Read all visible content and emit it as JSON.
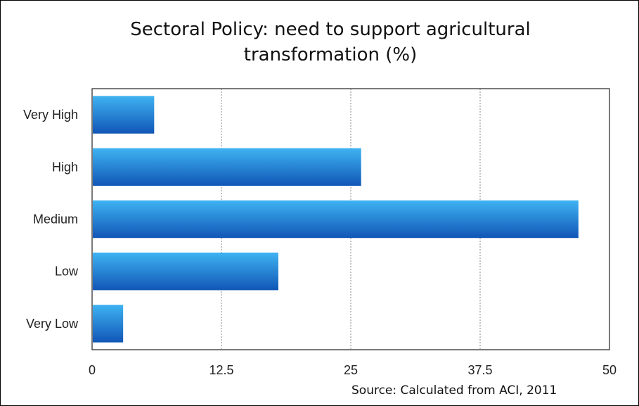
{
  "chart_data": {
    "type": "bar",
    "orientation": "horizontal",
    "title": "Sectoral Policy:  need to support agricultural transformation (%)",
    "title_lines": [
      "Sectoral Policy:  need to support agricultural",
      "transformation (%)"
    ],
    "categories": [
      "Very High",
      "High",
      "Medium",
      "Low",
      "Very Low"
    ],
    "values": [
      6,
      26,
      47,
      18,
      3
    ],
    "xlabel": "",
    "ylabel": "",
    "xlim": [
      0,
      50
    ],
    "xticks": [
      "0",
      "12.5",
      "25",
      "37.5",
      "50"
    ],
    "xtick_values": [
      0,
      12.5,
      25,
      37.5,
      50
    ],
    "grid": "vertical dotted",
    "legend": "none",
    "bar_color_top": "#3fb3f2",
    "bar_color_bottom": "#1156b6",
    "source": "Source:  Calculated from ACI, 2011"
  }
}
